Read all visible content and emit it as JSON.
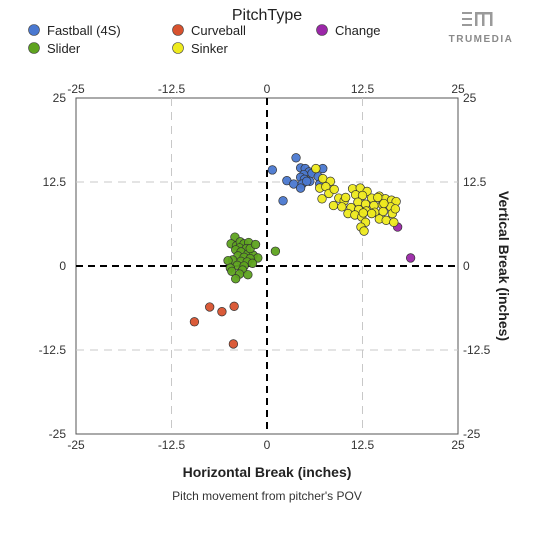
{
  "brand": {
    "logo_text": "TRUMEDIA"
  },
  "legend": {
    "title": "PitchType",
    "items": [
      {
        "name": "Fastball (4S)",
        "color": "#4a78d0"
      },
      {
        "name": "Curveball",
        "color": "#d8522e"
      },
      {
        "name": "Change",
        "color": "#9b27a8"
      },
      {
        "name": "Slider",
        "color": "#5ea31f"
      },
      {
        "name": "Sinker",
        "color": "#eeea1e"
      }
    ]
  },
  "chart_data": {
    "type": "scatter",
    "xlabel": "Horizontal Break (inches)",
    "ylabel": "Vertical Break (inches)",
    "caption": "Pitch movement from pitcher's POV",
    "xlim": [
      -25,
      25
    ],
    "ylim": [
      -25,
      25
    ],
    "x_ticks": [
      -25,
      -12.5,
      0,
      12.5,
      25
    ],
    "y_ticks": [
      25,
      12.5,
      0,
      -12.5,
      -25
    ],
    "x_tick_labels": [
      "-25",
      "-12.5",
      "0",
      "12.5",
      "25"
    ],
    "y_tick_labels": [
      "25",
      "12.5",
      "0",
      "-12.5",
      "-25"
    ],
    "grid": true,
    "zero_lines": true,
    "legend_position": "top",
    "series": [
      {
        "name": "Fastball (4S)",
        "color": "#4a78d0",
        "points": [
          [
            0.7,
            14.3
          ],
          [
            2.6,
            12.7
          ],
          [
            3.8,
            16.1
          ],
          [
            4.4,
            14.6
          ],
          [
            5.0,
            14.5
          ],
          [
            5.5,
            14.0
          ],
          [
            4.8,
            13.6
          ],
          [
            5.9,
            13.8
          ],
          [
            6.7,
            13.3
          ],
          [
            7.3,
            14.5
          ],
          [
            4.4,
            13.2
          ],
          [
            4.9,
            12.9
          ],
          [
            5.6,
            12.6
          ],
          [
            3.5,
            12.2
          ],
          [
            4.6,
            12.2
          ],
          [
            5.2,
            12.6
          ],
          [
            4.4,
            11.6
          ],
          [
            6.9,
            12.2
          ],
          [
            2.1,
            9.7
          ]
        ]
      },
      {
        "name": "Curveball",
        "color": "#d8522e",
        "points": [
          [
            -7.5,
            -6.1
          ],
          [
            -5.9,
            -6.8
          ],
          [
            -4.3,
            -6.0
          ],
          [
            -9.5,
            -8.3
          ],
          [
            -4.4,
            -11.6
          ]
        ]
      },
      {
        "name": "Change",
        "color": "#9b27a8",
        "points": [
          [
            17.1,
            5.8
          ],
          [
            18.8,
            1.2
          ]
        ]
      },
      {
        "name": "Slider",
        "color": "#5ea31f",
        "points": [
          [
            -4.2,
            4.3
          ],
          [
            -4.7,
            3.3
          ],
          [
            -4.0,
            3.0
          ],
          [
            -3.5,
            3.6
          ],
          [
            -3.0,
            3.3
          ],
          [
            -2.4,
            3.5
          ],
          [
            -3.6,
            2.7
          ],
          [
            -2.7,
            2.6
          ],
          [
            -4.1,
            2.4
          ],
          [
            -3.4,
            2.1
          ],
          [
            -2.5,
            1.8
          ],
          [
            -1.8,
            1.6
          ],
          [
            -1.2,
            1.2
          ],
          [
            -3.8,
            1.5
          ],
          [
            -3.0,
            1.3
          ],
          [
            -2.2,
            1.1
          ],
          [
            -4.5,
            0.9
          ],
          [
            -3.4,
            0.7
          ],
          [
            -2.6,
            0.6
          ],
          [
            -1.9,
            0.4
          ],
          [
            -3.9,
            0.1
          ],
          [
            -3.0,
            0.0
          ],
          [
            -5.1,
            0.8
          ],
          [
            -4.8,
            -0.3
          ],
          [
            -3.2,
            -0.6
          ],
          [
            -4.6,
            -0.8
          ],
          [
            -3.6,
            -1.2
          ],
          [
            -2.5,
            -1.3
          ],
          [
            -4.1,
            -1.9
          ],
          [
            1.1,
            2.2
          ],
          [
            -2.2,
            2.6
          ],
          [
            -1.5,
            3.2
          ]
        ]
      },
      {
        "name": "Sinker",
        "color": "#eeea1e",
        "points": [
          [
            6.4,
            14.5
          ],
          [
            7.3,
            13.0
          ],
          [
            8.3,
            12.6
          ],
          [
            6.9,
            11.6
          ],
          [
            7.7,
            11.8
          ],
          [
            8.1,
            10.8
          ],
          [
            7.2,
            10.0
          ],
          [
            9.4,
            10.1
          ],
          [
            10.1,
            9.7
          ],
          [
            11.2,
            11.5
          ],
          [
            12.2,
            11.6
          ],
          [
            13.1,
            11.1
          ],
          [
            11.6,
            10.6
          ],
          [
            12.5,
            10.5
          ],
          [
            13.7,
            10.1
          ],
          [
            14.7,
            10.4
          ],
          [
            15.5,
            10.0
          ],
          [
            16.3,
            9.8
          ],
          [
            16.9,
            9.6
          ],
          [
            11.9,
            9.5
          ],
          [
            12.9,
            9.2
          ],
          [
            14.0,
            9.0
          ],
          [
            15.1,
            9.1
          ],
          [
            16.2,
            8.8
          ],
          [
            8.7,
            9.0
          ],
          [
            9.8,
            8.8
          ],
          [
            11.0,
            8.7
          ],
          [
            12.0,
            8.4
          ],
          [
            13.0,
            8.2
          ],
          [
            14.1,
            8.0
          ],
          [
            15.2,
            8.1
          ],
          [
            16.4,
            7.8
          ],
          [
            10.6,
            7.8
          ],
          [
            11.5,
            7.6
          ],
          [
            12.4,
            7.3
          ],
          [
            14.7,
            7.0
          ],
          [
            15.6,
            6.8
          ],
          [
            16.6,
            6.5
          ],
          [
            12.9,
            6.5
          ],
          [
            12.3,
            5.8
          ],
          [
            12.7,
            5.2
          ],
          [
            13.7,
            7.8
          ],
          [
            14.5,
            10.2
          ],
          [
            10.3,
            10.2
          ],
          [
            15.3,
            9.3
          ],
          [
            16.8,
            8.5
          ],
          [
            12.6,
            7.9
          ],
          [
            8.8,
            11.4
          ]
        ]
      }
    ]
  }
}
